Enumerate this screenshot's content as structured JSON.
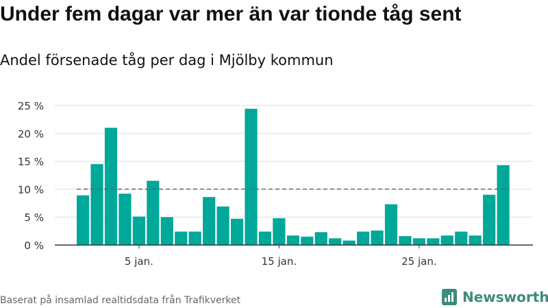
{
  "title": "Under fem dagar var mer än var tionde tåg sent",
  "subtitle": "Andel försenade tåg per dag i Mjölby kommun",
  "footer": "Baserat på insamlad realtidsdata från Trafikverket",
  "brand": "Newsworthy",
  "colors": {
    "bar": "#00a89a",
    "reference_line": "#666666",
    "grid": "#dddddd",
    "brand": "#3e8a7c"
  },
  "chart_data": {
    "type": "bar",
    "title": "Under fem dagar var mer än var tionde tåg sent",
    "subtitle": "Andel försenade tåg per dag i Mjölby kommun",
    "x": [
      "1 jan.",
      "2 jan.",
      "3 jan.",
      "4 jan.",
      "5 jan.",
      "6 jan.",
      "7 jan.",
      "8 jan.",
      "9 jan.",
      "10 jan.",
      "11 jan.",
      "12 jan.",
      "13 jan.",
      "14 jan.",
      "15 jan.",
      "16 jan.",
      "17 jan.",
      "18 jan.",
      "19 jan.",
      "20 jan.",
      "21 jan.",
      "22 jan.",
      "23 jan.",
      "24 jan.",
      "25 jan.",
      "26 jan.",
      "27 jan.",
      "28 jan.",
      "29 jan.",
      "30 jan.",
      "31 jan."
    ],
    "values": [
      8.9,
      14.5,
      21.0,
      9.2,
      5.1,
      11.5,
      5.0,
      2.4,
      2.4,
      8.6,
      6.9,
      4.7,
      24.4,
      2.4,
      4.8,
      1.7,
      1.5,
      2.3,
      1.2,
      0.8,
      2.4,
      2.6,
      7.3,
      1.6,
      1.2,
      1.2,
      1.7,
      2.4,
      1.7,
      9.0,
      14.3
    ],
    "unit": "%",
    "ylim": [
      0,
      25
    ],
    "yticks": [
      0,
      5,
      10,
      15,
      20,
      25
    ],
    "ytick_labels": [
      "0 %",
      "5 %",
      "10 %",
      "15 %",
      "20 %",
      "25 %"
    ],
    "xtick_labels": [
      {
        "index": 4,
        "label": "5 jan."
      },
      {
        "index": 14,
        "label": "15 jan."
      },
      {
        "index": 24,
        "label": "25 jan."
      }
    ],
    "reference_line": 10,
    "grid": true
  }
}
